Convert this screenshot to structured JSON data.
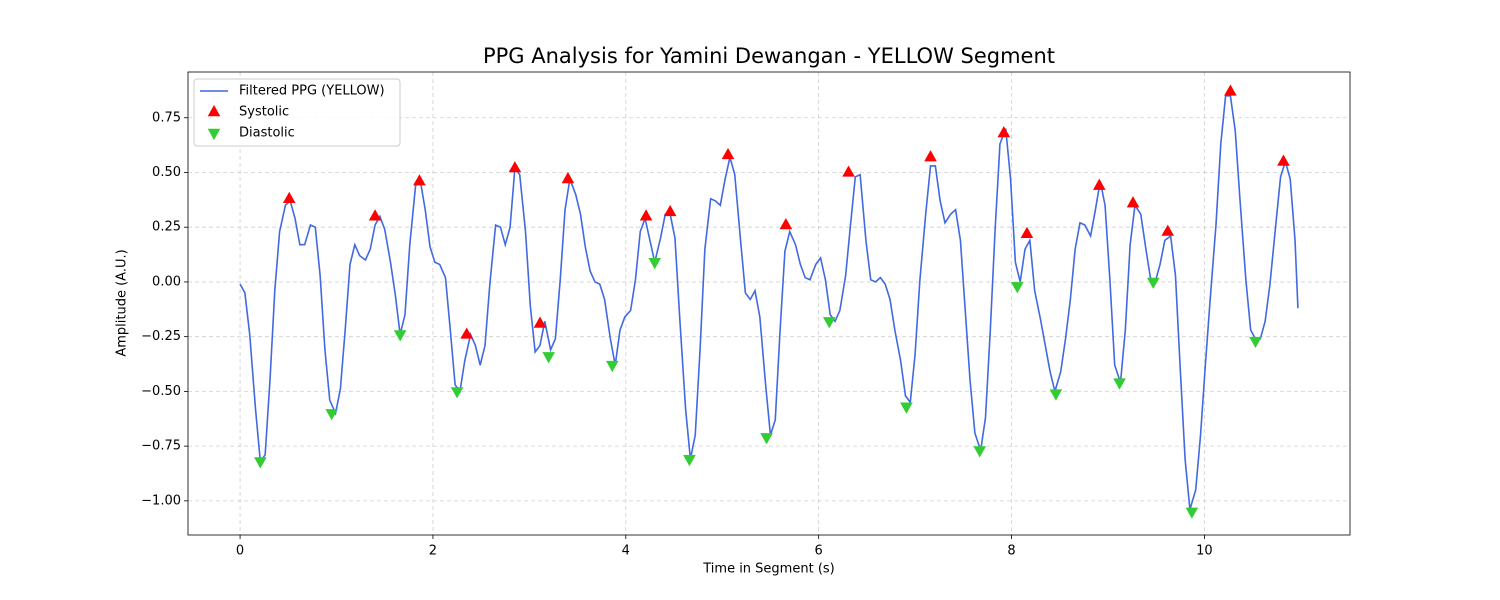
{
  "chart_data": {
    "type": "line",
    "title": "PPG Analysis for Yamini Dewangan - YELLOW Segment",
    "x_label": "Time in Segment (s)",
    "y_label": "Amplitude (A.U.)",
    "xlim": [
      -0.54,
      11.51
    ],
    "ylim": [
      -1.156,
      0.959
    ],
    "xticks": [
      0,
      2,
      4,
      6,
      8,
      10
    ],
    "yticks": [
      {
        "value": -1,
        "label": "−1.00"
      },
      {
        "value": -0.75,
        "label": "−0.75"
      },
      {
        "value": -0.5,
        "label": "−0.50"
      },
      {
        "value": -0.25,
        "label": "−0.25"
      },
      {
        "value": 0,
        "label": "0.00"
      },
      0.25,
      {
        "value": 0.5,
        "label": "0.50"
      },
      0.75
    ],
    "grid": true,
    "legend": "upper left",
    "series": [
      {
        "name": "Filtered PPG (YELLOW)",
        "type": "line",
        "color": "#4169e1",
        "x": [
          0,
          0.05,
          0.1,
          0.16,
          0.21,
          0.26,
          0.31,
          0.36,
          0.41,
          0.47,
          0.52,
          0.57,
          0.62,
          0.67,
          0.73,
          0.78,
          0.83,
          0.88,
          0.93,
          0.99,
          1.04,
          1.09,
          1.14,
          1.19,
          1.24,
          1.3,
          1.35,
          1.4,
          1.45,
          1.5,
          1.56,
          1.61,
          1.66,
          1.71,
          1.76,
          1.82,
          1.87,
          1.92,
          1.97,
          2.02,
          2.07,
          2.13,
          2.18,
          2.23,
          2.28,
          2.33,
          2.39,
          2.44,
          2.49,
          2.54,
          2.59,
          2.65,
          2.7,
          2.75,
          2.8,
          2.85,
          2.9,
          2.96,
          3.01,
          3.06,
          3.11,
          3.16,
          3.22,
          3.27,
          3.32,
          3.37,
          3.42,
          3.48,
          3.53,
          3.58,
          3.63,
          3.68,
          3.73,
          3.78,
          3.84,
          3.89,
          3.94,
          3.99,
          4.05,
          4.1,
          4.15,
          4.2,
          4.25,
          4.3,
          4.36,
          4.41,
          4.46,
          4.51,
          4.56,
          4.62,
          4.67,
          4.72,
          4.77,
          4.82,
          4.88,
          4.93,
          4.98,
          5.03,
          5.08,
          5.13,
          5.19,
          5.24,
          5.29,
          5.34,
          5.39,
          5.45,
          5.5,
          5.55,
          5.6,
          5.65,
          5.7,
          5.76,
          5.81,
          5.86,
          5.91,
          5.97,
          6.02,
          6.07,
          6.12,
          6.17,
          6.22,
          6.28,
          6.33,
          6.38,
          6.43,
          6.49,
          6.54,
          6.59,
          6.64,
          6.69,
          6.74,
          6.79,
          6.85,
          6.9,
          6.95,
          7,
          7.05,
          7.11,
          7.16,
          7.21,
          7.26,
          7.31,
          7.37,
          7.42,
          7.47,
          7.52,
          7.57,
          7.62,
          7.68,
          7.73,
          7.78,
          7.83,
          7.88,
          7.94,
          7.99,
          8.04,
          8.09,
          8.14,
          8.19,
          8.24,
          8.3,
          8.35,
          8.4,
          8.45,
          8.51,
          8.56,
          8.61,
          8.66,
          8.71,
          8.76,
          8.82,
          8.87,
          8.92,
          8.97,
          9.02,
          9.07,
          9.13,
          9.18,
          9.23,
          9.28,
          9.34,
          9.39,
          9.44,
          9.49,
          9.54,
          9.59,
          9.65,
          9.7,
          9.75,
          9.8,
          9.85,
          9.91,
          9.96,
          10.01,
          10.06,
          10.12,
          10.17,
          10.22,
          10.27,
          10.32,
          10.37,
          10.43,
          10.48,
          10.53,
          10.58,
          10.63,
          10.68,
          10.74,
          10.79,
          10.84,
          10.89,
          10.94,
          10.97
        ],
        "values": [
          -0.01,
          -0.05,
          -0.24,
          -0.58,
          -0.82,
          -0.79,
          -0.45,
          -0.04,
          0.23,
          0.35,
          0.37,
          0.29,
          0.17,
          0.17,
          0.26,
          0.25,
          0.03,
          -0.31,
          -0.54,
          -0.6,
          -0.49,
          -0.22,
          0.08,
          0.17,
          0.12,
          0.1,
          0.15,
          0.26,
          0.3,
          0.24,
          0.09,
          -0.06,
          -0.24,
          -0.15,
          0.17,
          0.44,
          0.46,
          0.33,
          0.16,
          0.09,
          0.08,
          0.02,
          -0.22,
          -0.47,
          -0.5,
          -0.36,
          -0.24,
          -0.29,
          -0.38,
          -0.29,
          -0.01,
          0.26,
          0.25,
          0.17,
          0.25,
          0.52,
          0.49,
          0.23,
          -0.11,
          -0.32,
          -0.29,
          -0.18,
          -0.31,
          -0.26,
          0.01,
          0.33,
          0.47,
          0.4,
          0.31,
          0.16,
          0.05,
          0,
          -0.01,
          -0.08,
          -0.26,
          -0.38,
          -0.22,
          -0.16,
          -0.13,
          0.01,
          0.23,
          0.29,
          0.19,
          0.09,
          0.2,
          0.31,
          0.31,
          0.2,
          -0.17,
          -0.58,
          -0.81,
          -0.7,
          -0.31,
          0.15,
          0.38,
          0.37,
          0.35,
          0.47,
          0.57,
          0.49,
          0.19,
          -0.05,
          -0.08,
          -0.04,
          -0.16,
          -0.47,
          -0.7,
          -0.63,
          -0.22,
          0.14,
          0.23,
          0.17,
          0.08,
          0.02,
          0.01,
          0.08,
          0.11,
          0.01,
          -0.15,
          -0.18,
          -0.13,
          0.03,
          0.26,
          0.48,
          0.49,
          0.19,
          0.01,
          0,
          0.02,
          -0.01,
          -0.08,
          -0.22,
          -0.36,
          -0.52,
          -0.55,
          -0.33,
          0.01,
          0.31,
          0.53,
          0.53,
          0.37,
          0.27,
          0.31,
          0.33,
          0.19,
          -0.13,
          -0.45,
          -0.69,
          -0.77,
          -0.62,
          -0.22,
          0.24,
          0.63,
          0.7,
          0.47,
          0.09,
          0,
          0.15,
          0.19,
          -0.04,
          -0.17,
          -0.29,
          -0.41,
          -0.5,
          -0.41,
          -0.26,
          -0.08,
          0.15,
          0.27,
          0.26,
          0.21,
          0.33,
          0.46,
          0.35,
          0.01,
          -0.38,
          -0.46,
          -0.22,
          0.17,
          0.35,
          0.31,
          0.16,
          0.02,
          0,
          0.08,
          0.19,
          0.21,
          0.03,
          -0.4,
          -0.81,
          -1.04,
          -0.95,
          -0.7,
          -0.38,
          -0.08,
          0.26,
          0.63,
          0.85,
          0.85,
          0.69,
          0.37,
          0.01,
          -0.22,
          -0.26,
          -0.26,
          -0.18,
          -0.01,
          0.26,
          0.48,
          0.55,
          0.47,
          0.19,
          -0.12
        ]
      },
      {
        "name": "Systolic",
        "type": "scatter",
        "marker": "triangle-up",
        "color": "#ff0000",
        "x": [
          0.51,
          1.4,
          1.86,
          2.35,
          2.85,
          3.11,
          3.4,
          4.21,
          4.46,
          5.06,
          5.66,
          6.31,
          7.16,
          7.92,
          8.16,
          8.91,
          9.26,
          9.62,
          10.27,
          10.82
        ],
        "values": [
          0.38,
          0.3,
          0.46,
          -0.24,
          0.52,
          -0.19,
          0.47,
          0.3,
          0.32,
          0.58,
          0.26,
          0.5,
          0.57,
          0.68,
          0.22,
          0.44,
          0.36,
          0.23,
          0.87,
          0.55
        ]
      },
      {
        "name": "Diastolic",
        "type": "scatter",
        "marker": "triangle-down",
        "color": "#32cd32",
        "x": [
          0.21,
          0.95,
          1.66,
          2.25,
          3.2,
          3.86,
          4.3,
          4.66,
          5.46,
          6.11,
          6.91,
          7.67,
          8.06,
          8.46,
          9.12,
          9.47,
          9.87,
          10.53
        ],
        "values": [
          -0.82,
          -0.6,
          -0.24,
          -0.5,
          -0.34,
          -0.38,
          0.09,
          -0.81,
          -0.71,
          -0.18,
          -0.57,
          -0.77,
          -0.02,
          -0.51,
          -0.46,
          0,
          -1.05,
          -0.27
        ]
      }
    ]
  }
}
